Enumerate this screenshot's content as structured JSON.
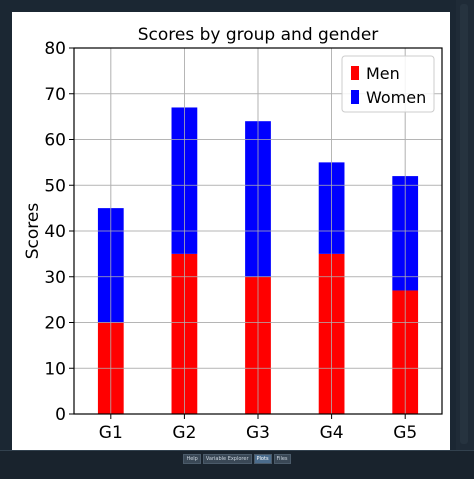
{
  "chart_data": {
    "type": "bar",
    "stacked": true,
    "title": "Scores by group and gender",
    "xlabel": "",
    "ylabel": "Scores",
    "categories": [
      "G1",
      "G2",
      "G3",
      "G4",
      "G5"
    ],
    "series": [
      {
        "name": "Men",
        "values": [
          20,
          35,
          30,
          35,
          27
        ],
        "color": "#ff0000"
      },
      {
        "name": "Women",
        "values": [
          25,
          32,
          34,
          20,
          25
        ],
        "color": "#0000ff"
      }
    ],
    "ylim": [
      0,
      80
    ],
    "yticks": [
      0,
      10,
      20,
      30,
      40,
      50,
      60,
      70,
      80
    ],
    "grid": true,
    "legend_position": "top-right"
  },
  "tabs": [
    {
      "label": "Help",
      "active": false
    },
    {
      "label": "Variable Explorer",
      "active": false
    },
    {
      "label": "Plots",
      "active": true
    },
    {
      "label": "Files",
      "active": false
    }
  ]
}
